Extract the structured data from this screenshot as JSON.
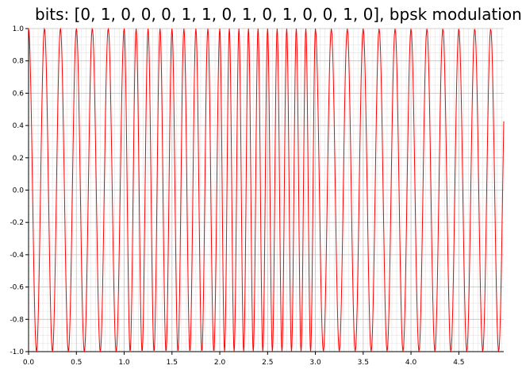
{
  "chart_data": {
    "type": "line",
    "title": "bits: [0, 1, 0, 0, 0, 1, 1, 0, 1, 0, 1, 0, 0, 1, 0], bpsk modulation",
    "xlabel": "",
    "ylabel": "",
    "xlim": [
      0,
      4.97
    ],
    "ylim": [
      -1.0,
      1.0
    ],
    "x_ticks": [
      "0.0",
      "0.5",
      "1.0",
      "1.5",
      "2.0",
      "2.5",
      "3.0",
      "3.5",
      "4.0",
      "4.5"
    ],
    "y_ticks": [
      "1.0",
      "0.8",
      "0.6",
      "0.4",
      "0.2",
      "0.0",
      "-0.2",
      "-0.4",
      "-0.6",
      "-0.8",
      "-1.0"
    ],
    "grid": true,
    "series": [
      {
        "color": "#ff0000",
        "segments": [
          {
            "x_start": 0.0,
            "x_end": 1.0,
            "cycles_per_unit": 6.0
          },
          {
            "x_start": 1.0,
            "x_end": 2.0,
            "cycles_per_unit": 8.0
          },
          {
            "x_start": 2.0,
            "x_end": 3.0,
            "cycles_per_unit": 10.0
          },
          {
            "x_start": 3.0,
            "x_end": 4.97,
            "cycles_per_unit": 6.0
          }
        ]
      }
    ]
  }
}
